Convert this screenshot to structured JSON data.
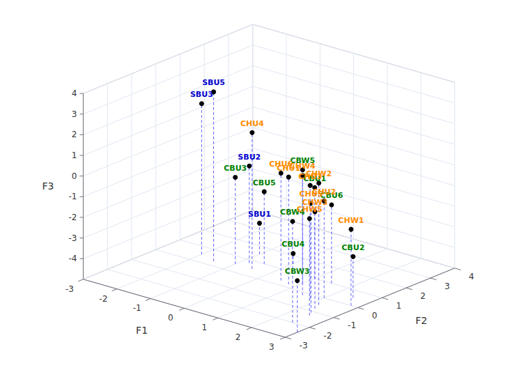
{
  "chart_data": {
    "type": "scatter3d",
    "xlabel": "F1",
    "ylabel": "F2",
    "zlabel": "F3",
    "labels": [
      "CBW3",
      "CBW4",
      "CBW5",
      "CBU1",
      "CBU2",
      "CBU3",
      "CBU4",
      "CBU5",
      "CBU6",
      "CHW1",
      "CHW2",
      "CHW3",
      "CHW4",
      "CHW5",
      "CHU1",
      "CHU2",
      "CHU3",
      "CHU4",
      "CHU5",
      "CHU6",
      "SBU1",
      "SBU2",
      "SBU3",
      "SBU5"
    ],
    "x": [
      3.0,
      2.5,
      1.0,
      1.0,
      2.5,
      -1.0,
      0.0,
      -0.5,
      1.5,
      2.8,
      2.2,
      2.3,
      1.5,
      2.5,
      0.8,
      2.0,
      1.8,
      -0.5,
      2.4,
      0.5,
      -1.0,
      -0.8,
      -2.0,
      -1.5
    ],
    "y": [
      -2.5,
      -2.0,
      0.5,
      1.0,
      0.5,
      0.5,
      1.5,
      1.0,
      1.0,
      0.0,
      -0.5,
      -0.8,
      -0.2,
      -1.3,
      0.2,
      0.0,
      -0.3,
      0.5,
      -1.1,
      0.3,
      1.5,
      0.8,
      0.5,
      0.3
    ],
    "z": [
      -2.5,
      -0.1,
      0.5,
      -0.6,
      -3.0,
      -0.8,
      -4.5,
      -1.5,
      -1.2,
      -1.3,
      0.9,
      -0.3,
      0.8,
      -0.3,
      0.2,
      -0.3,
      0.5,
      1.6,
      0.3,
      0.2,
      -3.5,
      -0.3,
      2.3,
      3.2
    ],
    "colors": [
      "#008000",
      "#008000",
      "#008000",
      "#008000",
      "#008000",
      "#008000",
      "#008000",
      "#008000",
      "#008000",
      "#FF8C00",
      "#FF8C00",
      "#FF8C00",
      "#FF8C00",
      "#FF8C00",
      "#FF8C00",
      "#FF8C00",
      "#FF8C00",
      "#FF8C00",
      "#FF8C00",
      "#FF8C00",
      "#0000CD",
      "#0000CD",
      "#0000CD",
      "#0000CD"
    ],
    "color": "#000000",
    "marker": "circle",
    "stems": {
      "color": "#4444FF",
      "line_style": "dashed"
    },
    "xlim": [
      -3,
      3
    ],
    "ylim": [
      -3,
      4
    ],
    "zlim": [
      -5,
      4
    ],
    "xticks": [
      -3,
      -2,
      -1,
      0,
      1,
      2,
      3
    ],
    "yticks": [
      -3,
      -2,
      -1,
      0,
      1,
      2,
      3,
      4
    ],
    "zticks": [
      -4,
      -3,
      -2,
      -1,
      0,
      1,
      2,
      3,
      4
    ],
    "grid": true
  }
}
